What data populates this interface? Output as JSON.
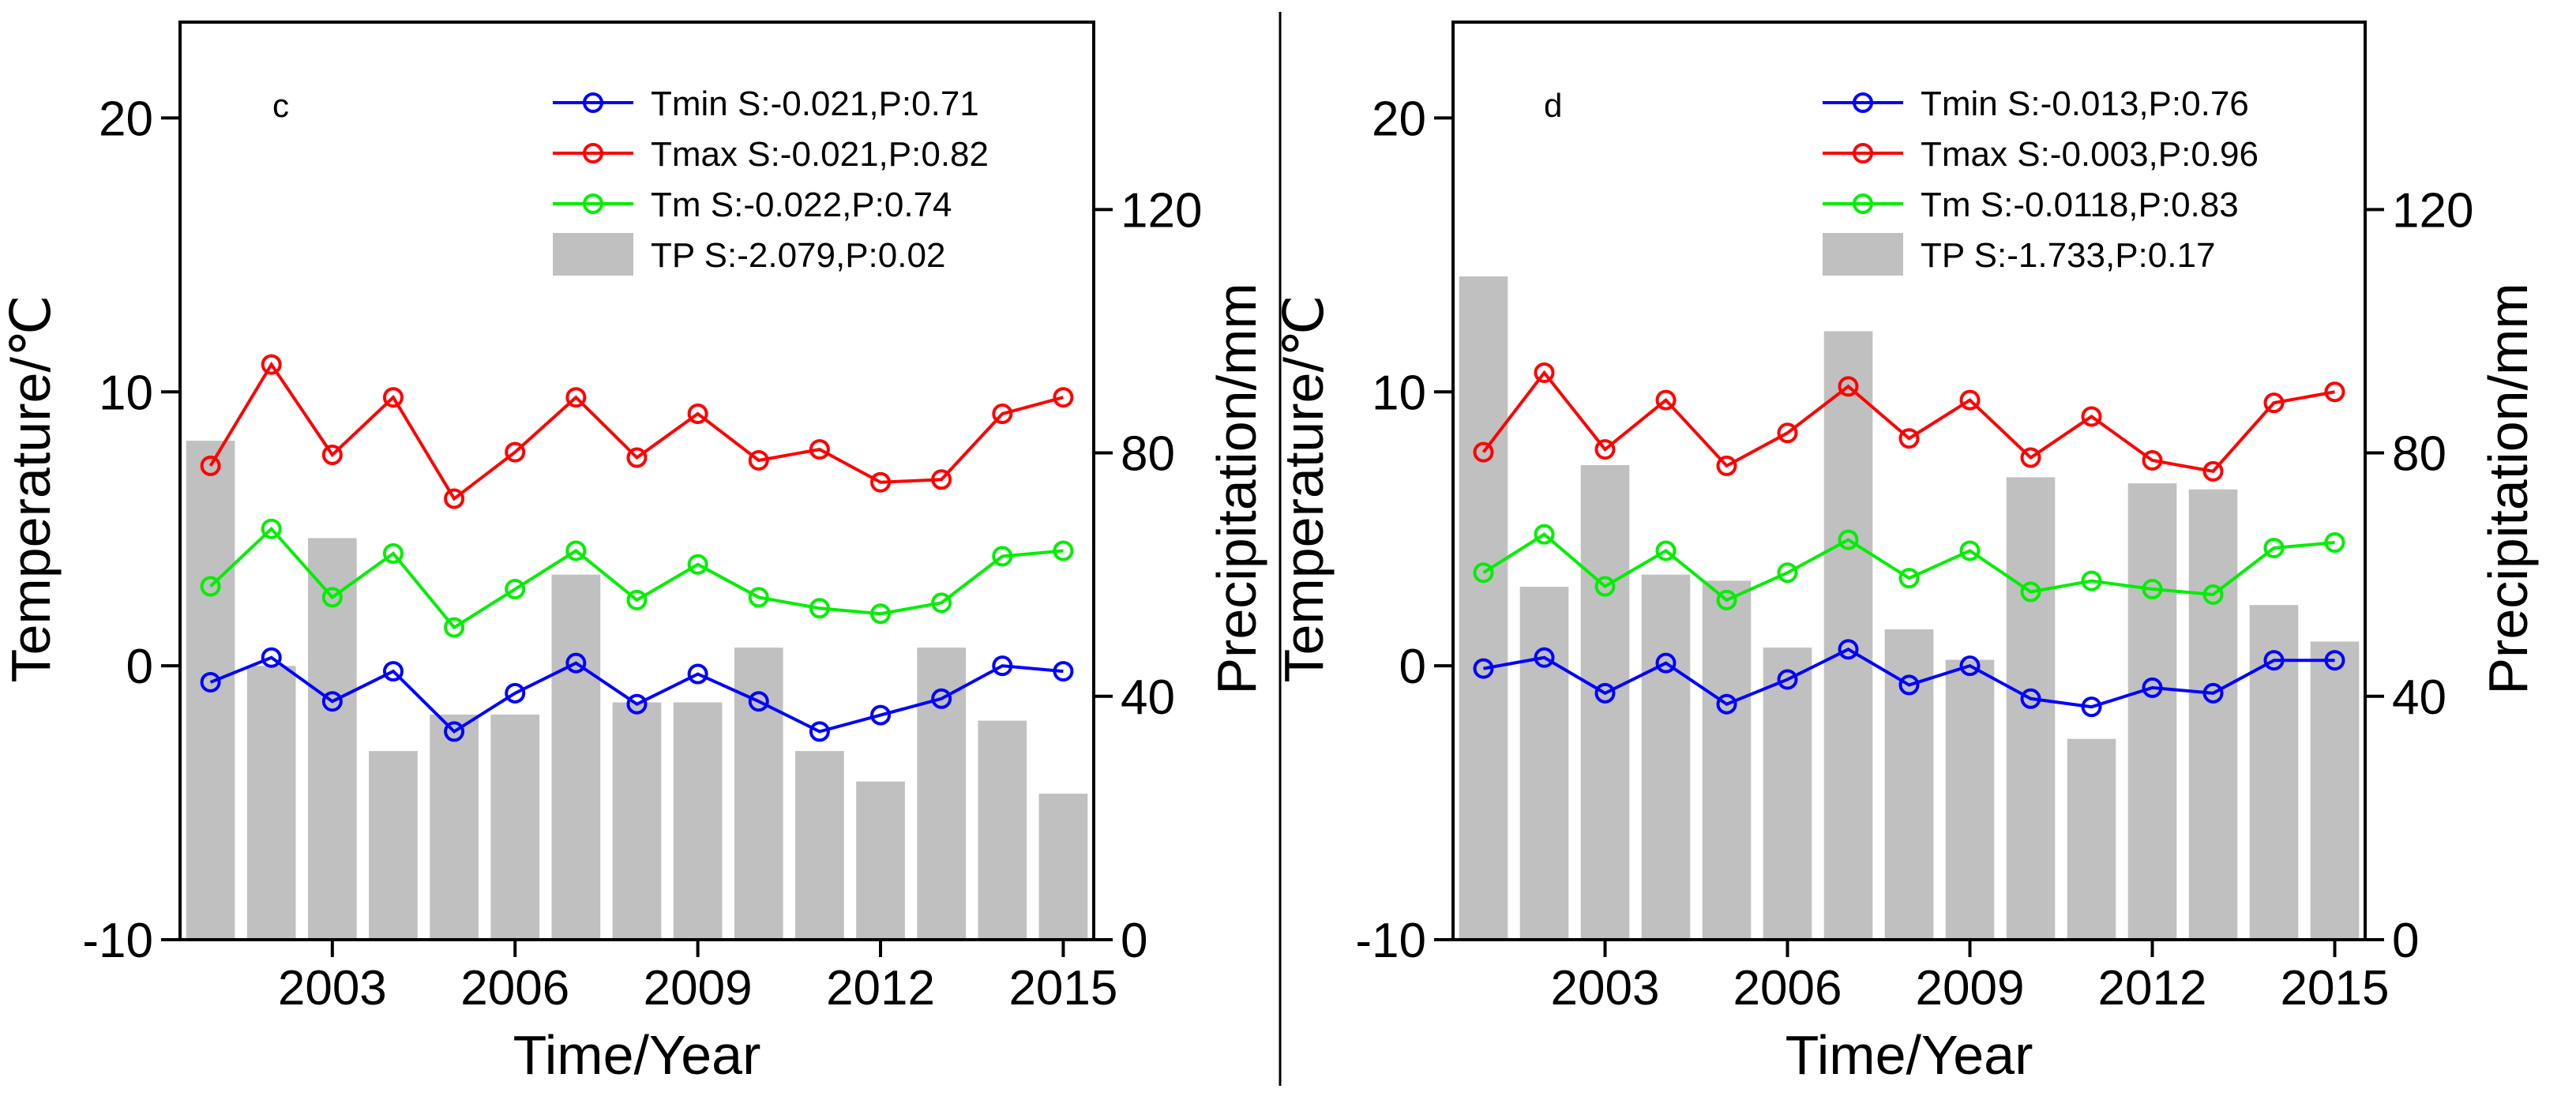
{
  "colors": {
    "tmin": "#0000ff",
    "tmax": "#ff0000",
    "tm": "#00ee00",
    "tp": "#c0c0c0",
    "axis": "#000000"
  },
  "chart_data": [
    {
      "type": "bar+line",
      "panel_label": "c",
      "xlabel": "Time/Year",
      "ylabel_left": "Temperature/℃",
      "ylabel_right": "Precipitation/mm",
      "xlim": [
        2000.5,
        2015.5
      ],
      "ylim_left": [
        -10,
        23.5
      ],
      "ylim_right": [
        0,
        150.8
      ],
      "xticks": [
        2003,
        2006,
        2009,
        2012,
        2015
      ],
      "yticks_left": [
        -10,
        0,
        10,
        20
      ],
      "yticks_right": [
        0,
        40,
        80,
        120
      ],
      "legend_position": "top-right",
      "x": [
        2001,
        2002,
        2003,
        2004,
        2005,
        2006,
        2007,
        2008,
        2009,
        2010,
        2011,
        2012,
        2013,
        2014,
        2015
      ],
      "series": [
        {
          "name": "Tmin",
          "legend": "Tmin S:-0.021,P:0.71",
          "kind": "line",
          "axis": "left",
          "color_key": "tmin",
          "values": [
            -0.6,
            0.3,
            -1.3,
            -0.2,
            -2.4,
            -1.0,
            0.1,
            -1.4,
            -0.3,
            -1.3,
            -2.4,
            -1.8,
            -1.2,
            0.0,
            -0.2
          ]
        },
        {
          "name": "Tmax",
          "legend": "Tmax S:-0.021,P:0.82",
          "kind": "line",
          "axis": "left",
          "color_key": "tmax",
          "values": [
            7.3,
            11.0,
            7.7,
            9.8,
            6.1,
            7.8,
            9.8,
            7.6,
            9.2,
            7.5,
            7.9,
            6.7,
            6.8,
            9.2,
            9.8
          ]
        },
        {
          "name": "Tm",
          "legend": "Tm S:-0.022,P:0.74",
          "kind": "line",
          "axis": "left",
          "color_key": "tm",
          "values": [
            2.9,
            5.0,
            2.5,
            4.1,
            1.4,
            2.8,
            4.2,
            2.4,
            3.7,
            2.5,
            2.1,
            1.9,
            2.3,
            4.0,
            4.2
          ]
        },
        {
          "name": "TP",
          "legend": "TP S:-2.079,P:0.02",
          "kind": "bar",
          "axis": "right",
          "color_key": "tp",
          "values": [
            82,
            45,
            66,
            31,
            37,
            37,
            60,
            39,
            39,
            48,
            31,
            26,
            48,
            36,
            24
          ]
        }
      ]
    },
    {
      "type": "bar+line",
      "panel_label": "d",
      "xlabel": "Time/Year",
      "ylabel_left": "Temperature/℃",
      "ylabel_right": "Precipitation/mm",
      "xlim": [
        2000.5,
        2015.5
      ],
      "ylim_left": [
        -10,
        23.5
      ],
      "ylim_right": [
        0,
        150.8
      ],
      "xticks": [
        2003,
        2006,
        2009,
        2012,
        2015
      ],
      "yticks_left": [
        -10,
        0,
        10,
        20
      ],
      "yticks_right": [
        0,
        40,
        80,
        120
      ],
      "legend_position": "top-right",
      "x": [
        2001,
        2002,
        2003,
        2004,
        2005,
        2006,
        2007,
        2008,
        2009,
        2010,
        2011,
        2012,
        2013,
        2014,
        2015
      ],
      "series": [
        {
          "name": "Tmin",
          "legend": "Tmin S:-0.013,P:0.76",
          "kind": "line",
          "axis": "left",
          "color_key": "tmin",
          "values": [
            -0.1,
            0.3,
            -1.0,
            0.1,
            -1.4,
            -0.5,
            0.6,
            -0.7,
            0.0,
            -1.2,
            -1.5,
            -0.8,
            -1.0,
            0.2,
            0.2
          ]
        },
        {
          "name": "Tmax",
          "legend": "Tmax S:-0.003,P:0.96",
          "kind": "line",
          "axis": "left",
          "color_key": "tmax",
          "values": [
            7.8,
            10.7,
            7.9,
            9.7,
            7.3,
            8.5,
            10.2,
            8.3,
            9.7,
            7.6,
            9.1,
            7.5,
            7.1,
            9.6,
            10.0
          ]
        },
        {
          "name": "Tm",
          "legend": "Tm S:-0.0118,P:0.83",
          "kind": "line",
          "axis": "left",
          "color_key": "tm",
          "values": [
            3.4,
            4.8,
            2.9,
            4.2,
            2.4,
            3.4,
            4.6,
            3.2,
            4.2,
            2.7,
            3.1,
            2.8,
            2.6,
            4.3,
            4.5
          ]
        },
        {
          "name": "TP",
          "legend": "TP S:-1.733,P:0.17",
          "kind": "bar",
          "axis": "right",
          "color_key": "tp",
          "values": [
            109,
            58,
            78,
            60,
            59,
            48,
            100,
            51,
            46,
            76,
            33,
            75,
            74,
            55,
            49
          ]
        }
      ]
    }
  ]
}
